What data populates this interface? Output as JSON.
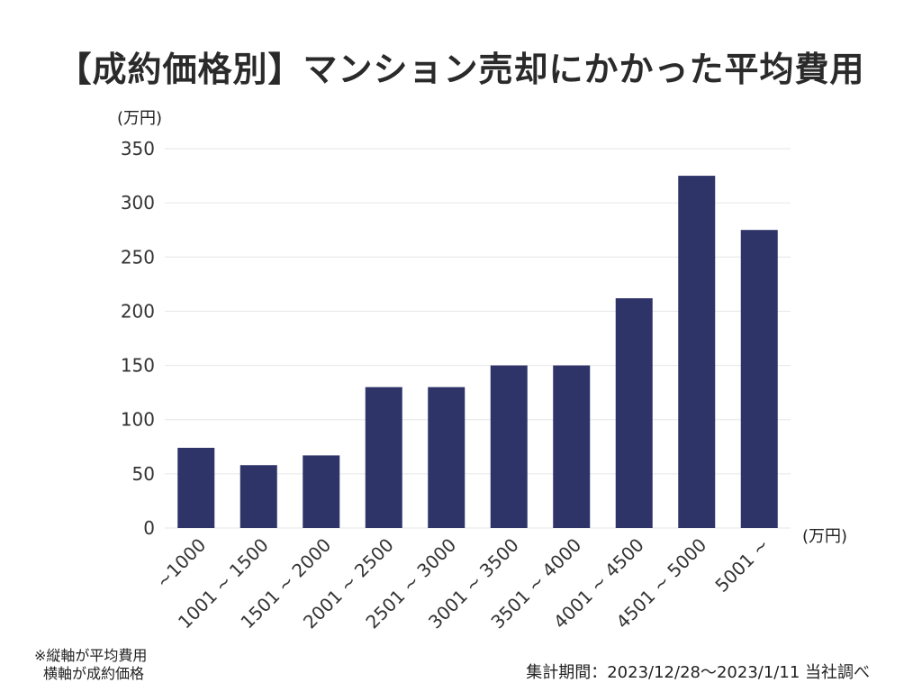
{
  "chart_data": {
    "type": "bar",
    "title": "【成約価格別】マンション売却にかかった平均費用",
    "ylabel": "(万円)",
    "xlabel": "(万円)",
    "categories": [
      "~1000",
      "1001 ~ 1500",
      "1501 ~ 2000",
      "2001 ~ 2500",
      "2501 ~ 3000",
      "3001 ~ 3500",
      "3501 ~ 4000",
      "4001 ~ 4500",
      "4501 ~ 5000",
      "5001 ~"
    ],
    "values": [
      74,
      58,
      67,
      130,
      130,
      150,
      150,
      212,
      325,
      275
    ],
    "ylim": [
      0,
      350
    ],
    "yticks": [
      0,
      50,
      100,
      150,
      200,
      250,
      300,
      350
    ],
    "grid": true,
    "bar_color": "#2e3368",
    "grid_color": "#e6e6e6"
  },
  "footnote": {
    "line1": "※縦軸が平均費用",
    "line2": "横軸が成約価格",
    "source": "集計期間：2023/12/28〜2023/1/11 当社調べ"
  }
}
